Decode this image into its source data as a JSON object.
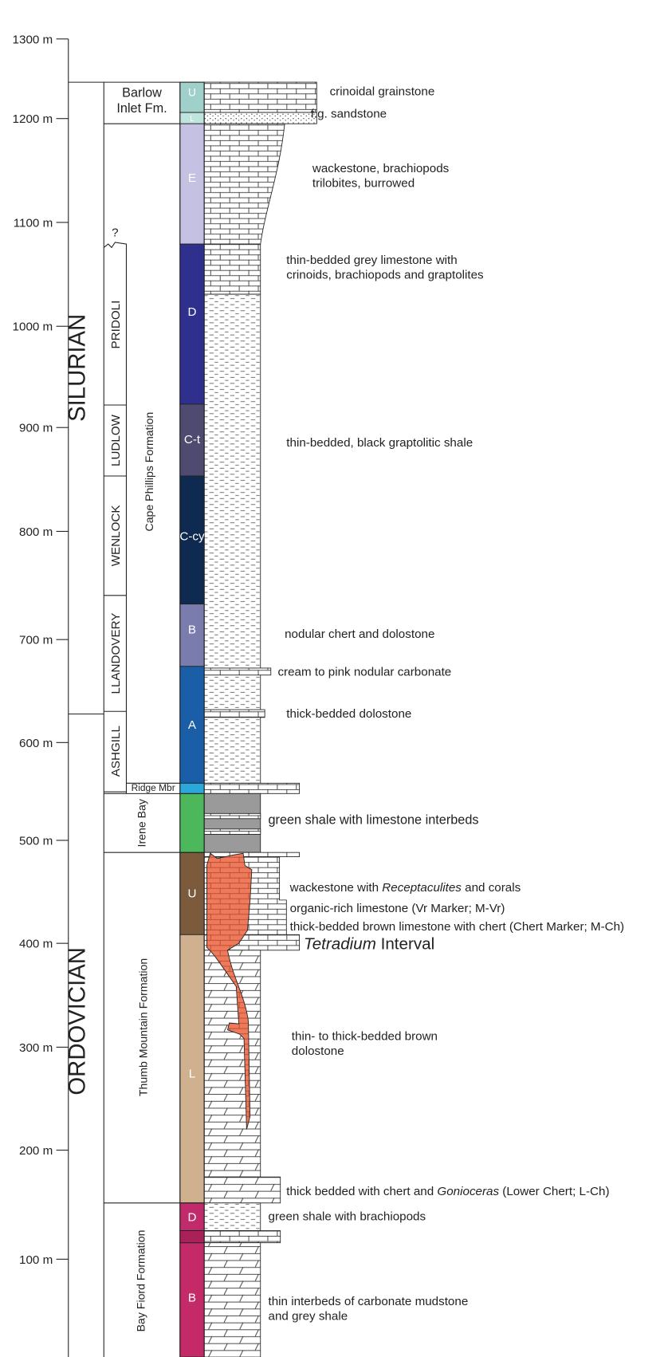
{
  "depth_axis": {
    "ticks": [
      "1300 m",
      "1200 m",
      "1100 m",
      "1000 m",
      "900 m",
      "800 m",
      "700 m",
      "600 m",
      "500 m",
      "400 m",
      "300 m",
      "200 m",
      "100 m"
    ]
  },
  "periods": [
    "SILURIAN",
    "ORDOVICIAN"
  ],
  "series": [
    "PRIDOLI",
    "LUDLOW",
    "WENLOCK",
    "LLANDOVERY",
    "ASHGILL"
  ],
  "uncertain_mark": "?",
  "formations": {
    "barlow_inlet": [
      "Barlow",
      "Inlet Fm."
    ],
    "cape_phillips": "Cape Phillips Formation",
    "ridge": "Ridge Mbr",
    "irene_bay": "Irene Bay",
    "thumb_mountain": "Thumb Mountain Formation",
    "bay_fiord": "Bay Fiord Formation"
  },
  "members": [
    "U",
    "L",
    "E",
    "D",
    "C-t",
    "C-cy",
    "B",
    "A",
    "U",
    "L",
    "D",
    "B"
  ],
  "descriptions": [
    {
      "parts": [
        {
          "text": "crinoidal grainstone"
        }
      ]
    },
    {
      "parts": [
        {
          "text": "f.g. sandstone"
        }
      ]
    },
    {
      "parts": [
        {
          "text": "wackestone, brachiopods"
        }
      ]
    },
    {
      "parts": [
        {
          "text": "trilobites, burrowed"
        }
      ]
    },
    {
      "parts": [
        {
          "text": "thin-bedded grey limestone with"
        }
      ]
    },
    {
      "parts": [
        {
          "text": "crinoids, brachiopods and graptolites"
        }
      ]
    },
    {
      "parts": [
        {
          "text": "thin-bedded, black graptolitic shale"
        }
      ]
    },
    {
      "parts": [
        {
          "text": "nodular chert and dolostone"
        }
      ]
    },
    {
      "parts": [
        {
          "text": "cream to pink nodular carbonate"
        }
      ]
    },
    {
      "parts": [
        {
          "text": "thick-bedded dolostone"
        }
      ]
    },
    {
      "parts": [
        {
          "text": "green shale with limestone interbeds"
        }
      ]
    },
    {
      "parts": [
        {
          "text": "wackestone with "
        },
        {
          "text": "Receptaculites",
          "italic": true
        },
        {
          "text": " and corals"
        }
      ]
    },
    {
      "parts": [
        {
          "text": "organic-rich limestone (Vr Marker; M-Vr)"
        }
      ]
    },
    {
      "parts": [
        {
          "text": "thick-bedded brown limestone with chert (Chert Marker; M-Ch)"
        }
      ]
    },
    {
      "parts": [
        {
          "text": "Tetradium",
          "italic": true
        },
        {
          "text": " Interval"
        }
      ]
    },
    {
      "parts": [
        {
          "text": "thin- to thick-bedded brown"
        }
      ]
    },
    {
      "parts": [
        {
          "text": "dolostone"
        }
      ]
    },
    {
      "parts": [
        {
          "text": "thick bedded with chert and "
        },
        {
          "text": "Gonioceras",
          "italic": true
        },
        {
          "text": " (Lower Chert; L-Ch)"
        }
      ]
    },
    {
      "parts": [
        {
          "text": "green shale with brachiopods"
        }
      ]
    },
    {
      "parts": [
        {
          "text": "thin interbeds of carbonate mudstone"
        }
      ]
    },
    {
      "parts": [
        {
          "text": "and grey shale"
        }
      ]
    }
  ]
}
